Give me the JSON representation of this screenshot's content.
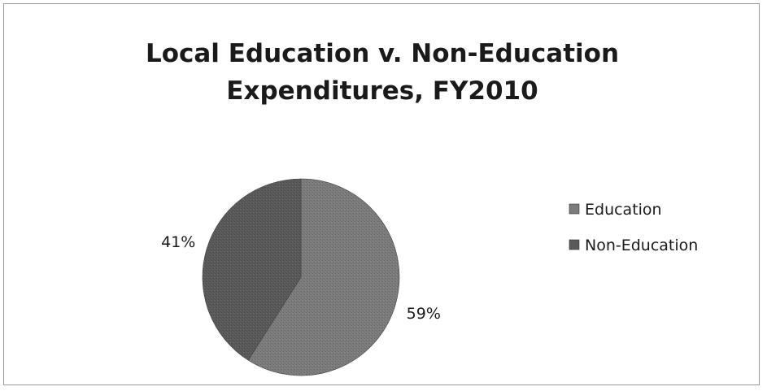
{
  "chart_data": {
    "type": "pie",
    "title_lines": [
      "Local Education v. Non-Education",
      "Expenditures, FY2010"
    ],
    "categories": [
      "Education",
      "Non-Education"
    ],
    "values": [
      59,
      41
    ],
    "data_labels": [
      "59%",
      "41%"
    ],
    "colors": [
      "#7c7c7c",
      "#5a5a5a"
    ],
    "legend_position": "right"
  }
}
